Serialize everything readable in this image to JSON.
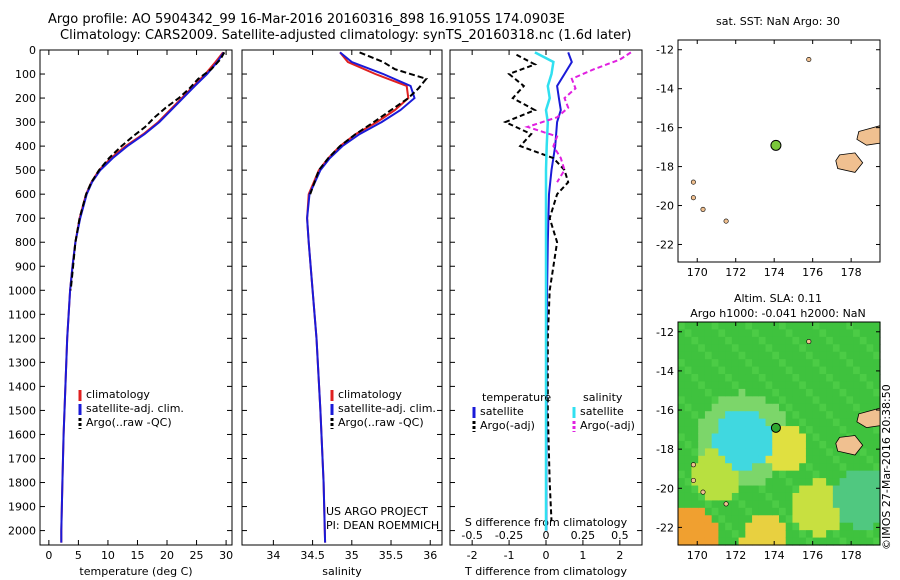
{
  "header": {
    "title_line1": "Argo profile: AO 5904342_99 16-Mar-2016 20160316_898 16.9105S 174.0903E",
    "title_line2": "Climatology: CARS2009. Satellite-adjusted climatology: synTS_20160318.nc (1.6d later)"
  },
  "colors": {
    "climatology": "#e02020",
    "satellite": "#1a1ad8",
    "argo": "#000000",
    "salinity_sat": "#30e0f0",
    "salinity_argo": "#e020e0",
    "land": "#f0c090",
    "float_marker": "#7ac83a"
  },
  "footer": {
    "project": "US ARGO PROJECT",
    "pi": "PI: DEAN ROEMMICH",
    "stamp": "©IMOS 27-Mar-2016 20:38:50"
  },
  "chart_data": [
    {
      "type": "line",
      "name": "temperature-profile",
      "xlabel": "temperature (deg C)",
      "ylabel": "depth",
      "xlim": [
        -1.5,
        31
      ],
      "ylim": [
        2060,
        0
      ],
      "xticks": [
        0,
        5,
        10,
        15,
        20,
        25,
        30
      ],
      "yticks": [
        0,
        100,
        200,
        300,
        400,
        500,
        600,
        700,
        800,
        900,
        1000,
        1100,
        1200,
        1300,
        1400,
        1500,
        1600,
        1700,
        1800,
        1900,
        2000
      ],
      "legend": [
        "climatology",
        "satellite-adj. clim.",
        "Argo(..raw -QC)"
      ],
      "series": [
        {
          "name": "climatology",
          "depth": [
            10,
            50,
            100,
            150,
            200,
            250,
            300,
            350,
            400,
            450,
            500,
            550,
            600,
            700,
            800,
            900,
            1000,
            1200,
            1400,
            1600,
            1800,
            2000,
            2050
          ],
          "values": [
            29.5,
            28.2,
            26.5,
            24.5,
            22.5,
            20.5,
            18.5,
            16.0,
            13.0,
            10.5,
            8.5,
            7.2,
            6.3,
            5.2,
            4.5,
            4.0,
            3.6,
            3.1,
            2.8,
            2.5,
            2.3,
            2.1,
            2.1
          ]
        },
        {
          "name": "satellite-adj. clim.",
          "depth": [
            10,
            50,
            100,
            150,
            200,
            250,
            300,
            350,
            400,
            450,
            500,
            550,
            600,
            700,
            800,
            900,
            1000,
            1200,
            1400,
            1600,
            1800,
            2000,
            2050
          ],
          "values": [
            29.6,
            28.5,
            26.8,
            24.7,
            22.7,
            20.7,
            18.7,
            16.2,
            13.3,
            10.8,
            8.7,
            7.3,
            6.4,
            5.3,
            4.5,
            4.0,
            3.6,
            3.1,
            2.8,
            2.5,
            2.3,
            2.1,
            2.1
          ]
        },
        {
          "name": "Argo(..raw -QC)",
          "depth": [
            10,
            40,
            80,
            120,
            160,
            200,
            240,
            280,
            320,
            360,
            400,
            450,
            500,
            550,
            600,
            700,
            800,
            900,
            1000
          ],
          "values": [
            29.7,
            29.0,
            27.5,
            25.3,
            23.8,
            22.0,
            19.8,
            17.9,
            16.3,
            14.2,
            12.3,
            10.2,
            8.5,
            7.2,
            6.3,
            5.2,
            4.5,
            4.1,
            3.7
          ]
        }
      ]
    },
    {
      "type": "line",
      "name": "salinity-profile",
      "xlabel": "salinity",
      "ylabel": "depth",
      "xlim": [
        33.6,
        36.15
      ],
      "ylim": [
        2060,
        0
      ],
      "xticks": [
        34,
        34.5,
        35,
        35.5,
        36
      ],
      "legend": [
        "climatology",
        "satellite-adj. clim.",
        "Argo(..raw -QC)"
      ],
      "series": [
        {
          "name": "climatology",
          "depth": [
            10,
            50,
            100,
            150,
            200,
            250,
            300,
            350,
            400,
            450,
            500,
            600,
            700,
            800,
            1000,
            1200,
            1500,
            1800,
            2050
          ],
          "values": [
            34.85,
            34.95,
            35.3,
            35.7,
            35.72,
            35.55,
            35.32,
            35.05,
            34.85,
            34.7,
            34.58,
            34.45,
            34.43,
            34.45,
            34.5,
            34.55,
            34.6,
            34.64,
            34.66
          ]
        },
        {
          "name": "satellite-adj. clim.",
          "depth": [
            10,
            50,
            100,
            150,
            200,
            250,
            300,
            350,
            400,
            450,
            500,
            600,
            700,
            800,
            1000,
            1200,
            1500,
            1800,
            2050
          ],
          "values": [
            34.85,
            35.0,
            35.4,
            35.75,
            35.8,
            35.62,
            35.38,
            35.1,
            34.88,
            34.72,
            34.6,
            34.46,
            34.43,
            34.45,
            34.5,
            34.55,
            34.6,
            34.64,
            34.66
          ]
        },
        {
          "name": "Argo(..raw -QC)",
          "depth": [
            10,
            50,
            80,
            120,
            160,
            200,
            250,
            300,
            350,
            400,
            450,
            500,
            600
          ],
          "values": [
            35.1,
            35.4,
            35.55,
            35.95,
            35.85,
            35.72,
            35.5,
            35.28,
            35.05,
            34.85,
            34.7,
            34.58,
            34.47
          ]
        }
      ]
    },
    {
      "type": "line",
      "name": "difference-profile",
      "xlabel": "T difference from climatology",
      "xlabel2": "S difference from climatology",
      "xlim": [
        -2.6,
        2.6
      ],
      "ylim": [
        2060,
        0
      ],
      "xticks": [
        -2,
        -1,
        0,
        1,
        2
      ],
      "xticks2": [
        "-0.5",
        "-0.25",
        "0",
        "0.25",
        "0.5"
      ],
      "xticks2_pos": [
        -2,
        -1,
        0,
        1,
        2
      ],
      "legend_titles": [
        "temperature",
        "salinity"
      ],
      "legend": [
        "satellite",
        "Argo(-adj)",
        "satellite",
        "Argo(-adj)"
      ],
      "series": [
        {
          "name": "T satellite",
          "depth": [
            10,
            50,
            100,
            150,
            200,
            250,
            300,
            400,
            500,
            600,
            800,
            1000,
            1200,
            1500,
            1800,
            2000
          ],
          "values": [
            0.6,
            0.7,
            0.5,
            0.3,
            0.35,
            0.4,
            0.3,
            0.25,
            0.15,
            0.08,
            0.05,
            0.03,
            0.02,
            0.02,
            0.01,
            0.01
          ]
        },
        {
          "name": "T argo",
          "depth": [
            20,
            60,
            100,
            150,
            200,
            250,
            300,
            350,
            400,
            450,
            500,
            550,
            600,
            650,
            700,
            800,
            900,
            1000,
            1200,
            1500,
            1800,
            1960
          ],
          "values": [
            -0.8,
            -0.3,
            -1.0,
            -0.6,
            -0.9,
            -0.3,
            -1.1,
            -0.4,
            -0.7,
            0.2,
            0.5,
            0.6,
            0.3,
            0.2,
            0.1,
            0.3,
            0.2,
            0.1,
            0.05,
            0.05,
            0.1,
            0.15
          ]
        },
        {
          "name": "S satellite",
          "depth": [
            10,
            50,
            100,
            150,
            200,
            250,
            300,
            400,
            500,
            600,
            800,
            1000,
            1500,
            2000
          ],
          "values": [
            -0.3,
            0.2,
            0.15,
            0.05,
            0.1,
            0.0,
            0.05,
            0.02,
            0.0,
            0.0,
            0.0,
            0.0,
            0.0,
            0.0
          ]
        },
        {
          "name": "S argo",
          "depth": [
            10,
            40,
            80,
            120,
            160,
            200,
            240,
            280,
            320,
            360,
            400,
            450,
            500,
            550
          ],
          "values": [
            2.3,
            2.0,
            1.3,
            0.7,
            0.8,
            0.5,
            0.6,
            0.3,
            -0.5,
            0.3,
            0.2,
            0.4,
            0.5,
            0.3
          ]
        }
      ]
    },
    {
      "type": "scatter",
      "name": "sst-map",
      "title": "sat. SST: NaN Argo: 30",
      "xlim": [
        169,
        179.5
      ],
      "ylim": [
        -22.9,
        -11.5
      ],
      "xticks": [
        170,
        172,
        174,
        176,
        178
      ],
      "yticks": [
        -12,
        -14,
        -16,
        -18,
        -20,
        -22
      ],
      "float": {
        "lon": 174.09,
        "lat": -16.91
      }
    },
    {
      "type": "heatmap",
      "name": "sla-map",
      "title_line1": "Altim. SLA: 0.11",
      "title_line2": "Argo h1000: -0.041 h2000: NaN",
      "xlim": [
        169,
        179.5
      ],
      "ylim": [
        -22.9,
        -11.5
      ],
      "xticks": [
        170,
        172,
        174,
        176,
        178
      ],
      "yticks": [
        -12,
        -14,
        -16,
        -18,
        -20,
        -22
      ],
      "float": {
        "lon": 174.09,
        "lat": -16.91
      }
    }
  ]
}
